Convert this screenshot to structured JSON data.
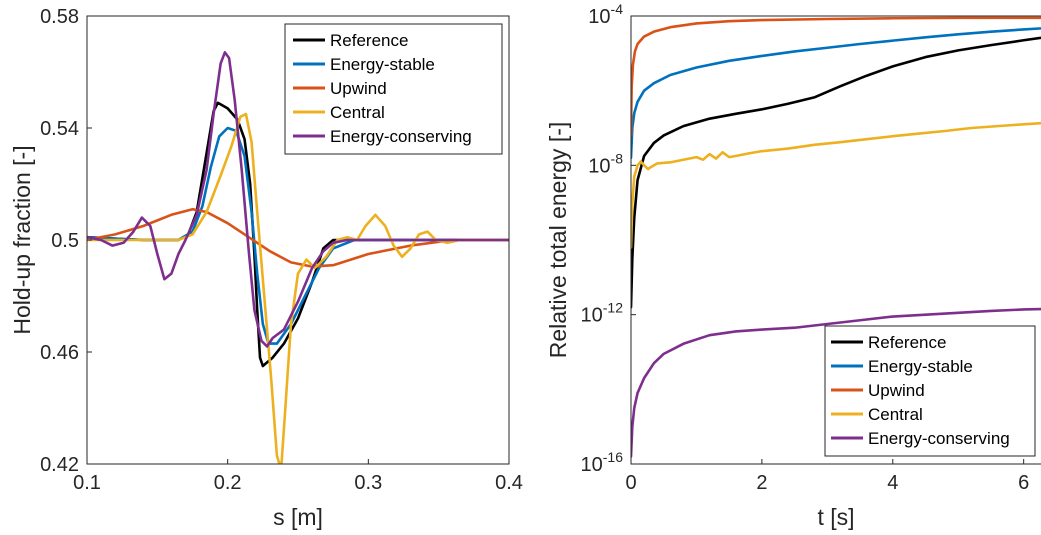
{
  "chart_data": [
    {
      "type": "line",
      "xlabel": "s [m]",
      "ylabel": "Hold-up fraction [-]",
      "xlim": [
        0.1,
        0.4
      ],
      "ylim": [
        0.42,
        0.58
      ],
      "xticks": [
        0.1,
        0.2,
        0.3,
        0.4
      ],
      "xtick_labels": [
        "0.1",
        "0.2",
        "0.3",
        "0.4"
      ],
      "yticks": [
        0.42,
        0.46,
        0.5,
        0.54,
        0.58
      ],
      "ytick_labels": [
        "0.42",
        "0.46",
        "0.5",
        "0.54",
        "0.58"
      ],
      "grid": false,
      "legend_position": "top-right",
      "series": [
        {
          "name": "Reference",
          "color": "#000000",
          "points": [
            [
              0.1,
              0.501
            ],
            [
              0.14,
              0.5
            ],
            [
              0.165,
              0.5
            ],
            [
              0.172,
              0.502
            ],
            [
              0.178,
              0.51
            ],
            [
              0.184,
              0.528
            ],
            [
              0.19,
              0.546
            ],
            [
              0.193,
              0.549
            ],
            [
              0.2,
              0.547
            ],
            [
              0.207,
              0.543
            ],
            [
              0.212,
              0.536
            ],
            [
              0.216,
              0.52
            ],
            [
              0.219,
              0.495
            ],
            [
              0.221,
              0.475
            ],
            [
              0.223,
              0.458
            ],
            [
              0.225,
              0.455
            ],
            [
              0.232,
              0.458
            ],
            [
              0.24,
              0.463
            ],
            [
              0.25,
              0.472
            ],
            [
              0.26,
              0.485
            ],
            [
              0.268,
              0.497
            ],
            [
              0.275,
              0.5
            ],
            [
              0.3,
              0.5
            ],
            [
              0.4,
              0.5
            ]
          ]
        },
        {
          "name": "Energy-stable",
          "color": "#0072BD",
          "points": [
            [
              0.1,
              0.501
            ],
            [
              0.14,
              0.5
            ],
            [
              0.165,
              0.5
            ],
            [
              0.175,
              0.503
            ],
            [
              0.182,
              0.512
            ],
            [
              0.188,
              0.526
            ],
            [
              0.194,
              0.537
            ],
            [
              0.2,
              0.54
            ],
            [
              0.206,
              0.539
            ],
            [
              0.212,
              0.53
            ],
            [
              0.217,
              0.51
            ],
            [
              0.221,
              0.488
            ],
            [
              0.225,
              0.47
            ],
            [
              0.229,
              0.463
            ],
            [
              0.235,
              0.463
            ],
            [
              0.245,
              0.47
            ],
            [
              0.255,
              0.48
            ],
            [
              0.265,
              0.49
            ],
            [
              0.275,
              0.497
            ],
            [
              0.29,
              0.5
            ],
            [
              0.4,
              0.5
            ]
          ]
        },
        {
          "name": "Upwind",
          "color": "#D95319",
          "points": [
            [
              0.1,
              0.5
            ],
            [
              0.12,
              0.502
            ],
            [
              0.14,
              0.505
            ],
            [
              0.16,
              0.509
            ],
            [
              0.175,
              0.511
            ],
            [
              0.185,
              0.51
            ],
            [
              0.2,
              0.506
            ],
            [
              0.215,
              0.501
            ],
            [
              0.23,
              0.496
            ],
            [
              0.245,
              0.492
            ],
            [
              0.26,
              0.4905
            ],
            [
              0.275,
              0.491
            ],
            [
              0.3,
              0.495
            ],
            [
              0.33,
              0.498
            ],
            [
              0.36,
              0.5
            ],
            [
              0.4,
              0.5
            ]
          ]
        },
        {
          "name": "Central",
          "color": "#EDB120",
          "points": [
            [
              0.1,
              0.5
            ],
            [
              0.14,
              0.5
            ],
            [
              0.165,
              0.5
            ],
            [
              0.175,
              0.502
            ],
            [
              0.185,
              0.51
            ],
            [
              0.195,
              0.523
            ],
            [
              0.203,
              0.534
            ],
            [
              0.209,
              0.544
            ],
            [
              0.213,
              0.545
            ],
            [
              0.217,
              0.535
            ],
            [
              0.221,
              0.51
            ],
            [
              0.226,
              0.48
            ],
            [
              0.231,
              0.45
            ],
            [
              0.235,
              0.423
            ],
            [
              0.238,
              0.418
            ],
            [
              0.241,
              0.44
            ],
            [
              0.245,
              0.47
            ],
            [
              0.25,
              0.488
            ],
            [
              0.256,
              0.493
            ],
            [
              0.262,
              0.49
            ],
            [
              0.27,
              0.494
            ],
            [
              0.278,
              0.5
            ],
            [
              0.285,
              0.501
            ],
            [
              0.292,
              0.5
            ],
            [
              0.298,
              0.505
            ],
            [
              0.305,
              0.509
            ],
            [
              0.312,
              0.505
            ],
            [
              0.318,
              0.498
            ],
            [
              0.324,
              0.494
            ],
            [
              0.33,
              0.497
            ],
            [
              0.336,
              0.502
            ],
            [
              0.342,
              0.503
            ],
            [
              0.348,
              0.5
            ],
            [
              0.356,
              0.499
            ],
            [
              0.365,
              0.5
            ],
            [
              0.4,
              0.5
            ]
          ]
        },
        {
          "name": "Energy-conserving",
          "color": "#7E2F8E",
          "points": [
            [
              0.1,
              0.501
            ],
            [
              0.11,
              0.5
            ],
            [
              0.118,
              0.498
            ],
            [
              0.126,
              0.499
            ],
            [
              0.133,
              0.503
            ],
            [
              0.139,
              0.508
            ],
            [
              0.145,
              0.505
            ],
            [
              0.15,
              0.495
            ],
            [
              0.155,
              0.486
            ],
            [
              0.16,
              0.488
            ],
            [
              0.165,
              0.495
            ],
            [
              0.17,
              0.5
            ],
            [
              0.178,
              0.509
            ],
            [
              0.185,
              0.525
            ],
            [
              0.19,
              0.545
            ],
            [
              0.195,
              0.563
            ],
            [
              0.198,
              0.567
            ],
            [
              0.201,
              0.565
            ],
            [
              0.205,
              0.55
            ],
            [
              0.21,
              0.525
            ],
            [
              0.215,
              0.496
            ],
            [
              0.219,
              0.475
            ],
            [
              0.224,
              0.464
            ],
            [
              0.228,
              0.462
            ],
            [
              0.232,
              0.465
            ],
            [
              0.24,
              0.468
            ],
            [
              0.25,
              0.478
            ],
            [
              0.26,
              0.49
            ],
            [
              0.268,
              0.496
            ],
            [
              0.275,
              0.499
            ],
            [
              0.285,
              0.5
            ],
            [
              0.3,
              0.5
            ],
            [
              0.32,
              0.5
            ],
            [
              0.34,
              0.5
            ],
            [
              0.4,
              0.5
            ]
          ]
        }
      ]
    },
    {
      "type": "line",
      "xlabel": "t [s]",
      "ylabel": "Relative total energy [-]",
      "xlim": [
        0,
        6.28
      ],
      "ylim": [
        -16,
        -4
      ],
      "y_scale": "log",
      "xticks": [
        0,
        2,
        4,
        6
      ],
      "xtick_labels": [
        "0",
        "2",
        "4",
        "6"
      ],
      "yticks": [
        -16,
        -12,
        -8,
        -4
      ],
      "ytick_labels": [
        "-16",
        "-12",
        "-8",
        "-4"
      ],
      "ytick_base": "10",
      "grid": false,
      "legend_position": "bottom-right",
      "series": [
        {
          "name": "Reference",
          "color": "#000000",
          "points": [
            [
              0,
              -11.8
            ],
            [
              0.02,
              -10.5
            ],
            [
              0.05,
              -9.4
            ],
            [
              0.1,
              -8.4
            ],
            [
              0.2,
              -7.75
            ],
            [
              0.35,
              -7.4
            ],
            [
              0.5,
              -7.2
            ],
            [
              0.8,
              -6.95
            ],
            [
              1.2,
              -6.75
            ],
            [
              1.6,
              -6.62
            ],
            [
              2.0,
              -6.5
            ],
            [
              2.4,
              -6.35
            ],
            [
              2.8,
              -6.18
            ],
            [
              3.2,
              -5.88
            ],
            [
              3.6,
              -5.6
            ],
            [
              4.0,
              -5.35
            ],
            [
              4.5,
              -5.1
            ],
            [
              5.0,
              -4.92
            ],
            [
              5.5,
              -4.78
            ],
            [
              6.0,
              -4.65
            ],
            [
              6.28,
              -4.58
            ]
          ]
        },
        {
          "name": "Energy-stable",
          "color": "#0072BD",
          "points": [
            [
              0,
              -7.8
            ],
            [
              0.02,
              -7.0
            ],
            [
              0.05,
              -6.6
            ],
            [
              0.1,
              -6.3
            ],
            [
              0.2,
              -6.0
            ],
            [
              0.35,
              -5.8
            ],
            [
              0.6,
              -5.58
            ],
            [
              1.0,
              -5.38
            ],
            [
              1.5,
              -5.2
            ],
            [
              2.0,
              -5.07
            ],
            [
              2.5,
              -4.95
            ],
            [
              3.0,
              -4.85
            ],
            [
              3.5,
              -4.75
            ],
            [
              4.0,
              -4.66
            ],
            [
              4.5,
              -4.57
            ],
            [
              5.0,
              -4.49
            ],
            [
              5.5,
              -4.42
            ],
            [
              6.0,
              -4.36
            ],
            [
              6.28,
              -4.33
            ]
          ]
        },
        {
          "name": "Upwind",
          "color": "#D95319",
          "points": [
            [
              0,
              -7.2
            ],
            [
              0.01,
              -5.9
            ],
            [
              0.03,
              -5.3
            ],
            [
              0.06,
              -4.95
            ],
            [
              0.1,
              -4.75
            ],
            [
              0.2,
              -4.55
            ],
            [
              0.35,
              -4.42
            ],
            [
              0.6,
              -4.3
            ],
            [
              1.0,
              -4.2
            ],
            [
              1.5,
              -4.14
            ],
            [
              2.0,
              -4.11
            ],
            [
              3.0,
              -4.08
            ],
            [
              4.0,
              -4.06
            ],
            [
              5.0,
              -4.05
            ],
            [
              6.0,
              -4.05
            ],
            [
              6.28,
              -4.05
            ]
          ]
        },
        {
          "name": "Central",
          "color": "#EDB120",
          "points": [
            [
              0,
              -10.2
            ],
            [
              0.02,
              -9.0
            ],
            [
              0.05,
              -8.3
            ],
            [
              0.1,
              -8.0
            ],
            [
              0.15,
              -7.9
            ],
            [
              0.2,
              -8.0
            ],
            [
              0.26,
              -8.1
            ],
            [
              0.3,
              -8.05
            ],
            [
              0.4,
              -7.95
            ],
            [
              0.6,
              -7.92
            ],
            [
              0.8,
              -7.85
            ],
            [
              1.0,
              -7.78
            ],
            [
              1.1,
              -7.85
            ],
            [
              1.2,
              -7.7
            ],
            [
              1.3,
              -7.82
            ],
            [
              1.4,
              -7.65
            ],
            [
              1.5,
              -7.78
            ],
            [
              1.6,
              -7.75
            ],
            [
              1.8,
              -7.68
            ],
            [
              2.0,
              -7.62
            ],
            [
              2.4,
              -7.55
            ],
            [
              2.8,
              -7.45
            ],
            [
              3.2,
              -7.38
            ],
            [
              3.6,
              -7.3
            ],
            [
              4.0,
              -7.22
            ],
            [
              4.4,
              -7.15
            ],
            [
              4.8,
              -7.08
            ],
            [
              5.2,
              -7.0
            ],
            [
              5.6,
              -6.95
            ],
            [
              6.0,
              -6.9
            ],
            [
              6.28,
              -6.87
            ]
          ]
        },
        {
          "name": "Energy-conserving",
          "color": "#7E2F8E",
          "points": [
            [
              0,
              -15.8
            ],
            [
              0.02,
              -15.0
            ],
            [
              0.05,
              -14.5
            ],
            [
              0.1,
              -14.1
            ],
            [
              0.2,
              -13.7
            ],
            [
              0.35,
              -13.3
            ],
            [
              0.5,
              -13.05
            ],
            [
              0.8,
              -12.78
            ],
            [
              1.2,
              -12.55
            ],
            [
              1.6,
              -12.45
            ],
            [
              2.0,
              -12.4
            ],
            [
              2.5,
              -12.35
            ],
            [
              3.0,
              -12.25
            ],
            [
              3.5,
              -12.15
            ],
            [
              4.0,
              -12.05
            ],
            [
              4.5,
              -12.0
            ],
            [
              5.0,
              -11.95
            ],
            [
              5.5,
              -11.9
            ],
            [
              6.0,
              -11.86
            ],
            [
              6.28,
              -11.85
            ]
          ]
        }
      ]
    }
  ]
}
